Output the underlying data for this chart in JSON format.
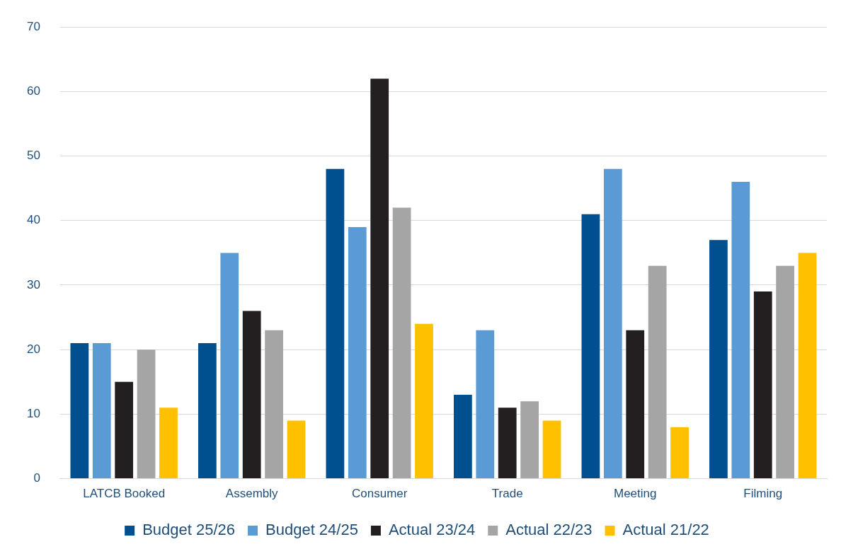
{
  "chart_data": {
    "type": "bar",
    "categories": [
      "LATCB Booked",
      "Assembly",
      "Consumer",
      "Trade",
      "Meeting",
      "Filming"
    ],
    "series": [
      {
        "name": "Budget 25/26",
        "color": "#004f8f",
        "values": [
          21,
          21,
          48,
          13,
          41,
          37
        ]
      },
      {
        "name": "Budget 24/25",
        "color": "#5b9bd5",
        "values": [
          21,
          35,
          39,
          23,
          48,
          46
        ]
      },
      {
        "name": "Actual 23/24",
        "color": "#231f20",
        "values": [
          15,
          26,
          62,
          11,
          23,
          29
        ]
      },
      {
        "name": "Actual 22/23",
        "color": "#a5a5a5",
        "values": [
          20,
          23,
          42,
          12,
          33,
          33
        ]
      },
      {
        "name": "Actual 21/22",
        "color": "#ffc000",
        "values": [
          11,
          9,
          24,
          9,
          8,
          35
        ]
      }
    ],
    "ylim": [
      0,
      70
    ],
    "yticks": [
      0,
      10,
      20,
      30,
      40,
      50,
      60,
      70
    ],
    "grid": "y",
    "legend": "bottom"
  }
}
